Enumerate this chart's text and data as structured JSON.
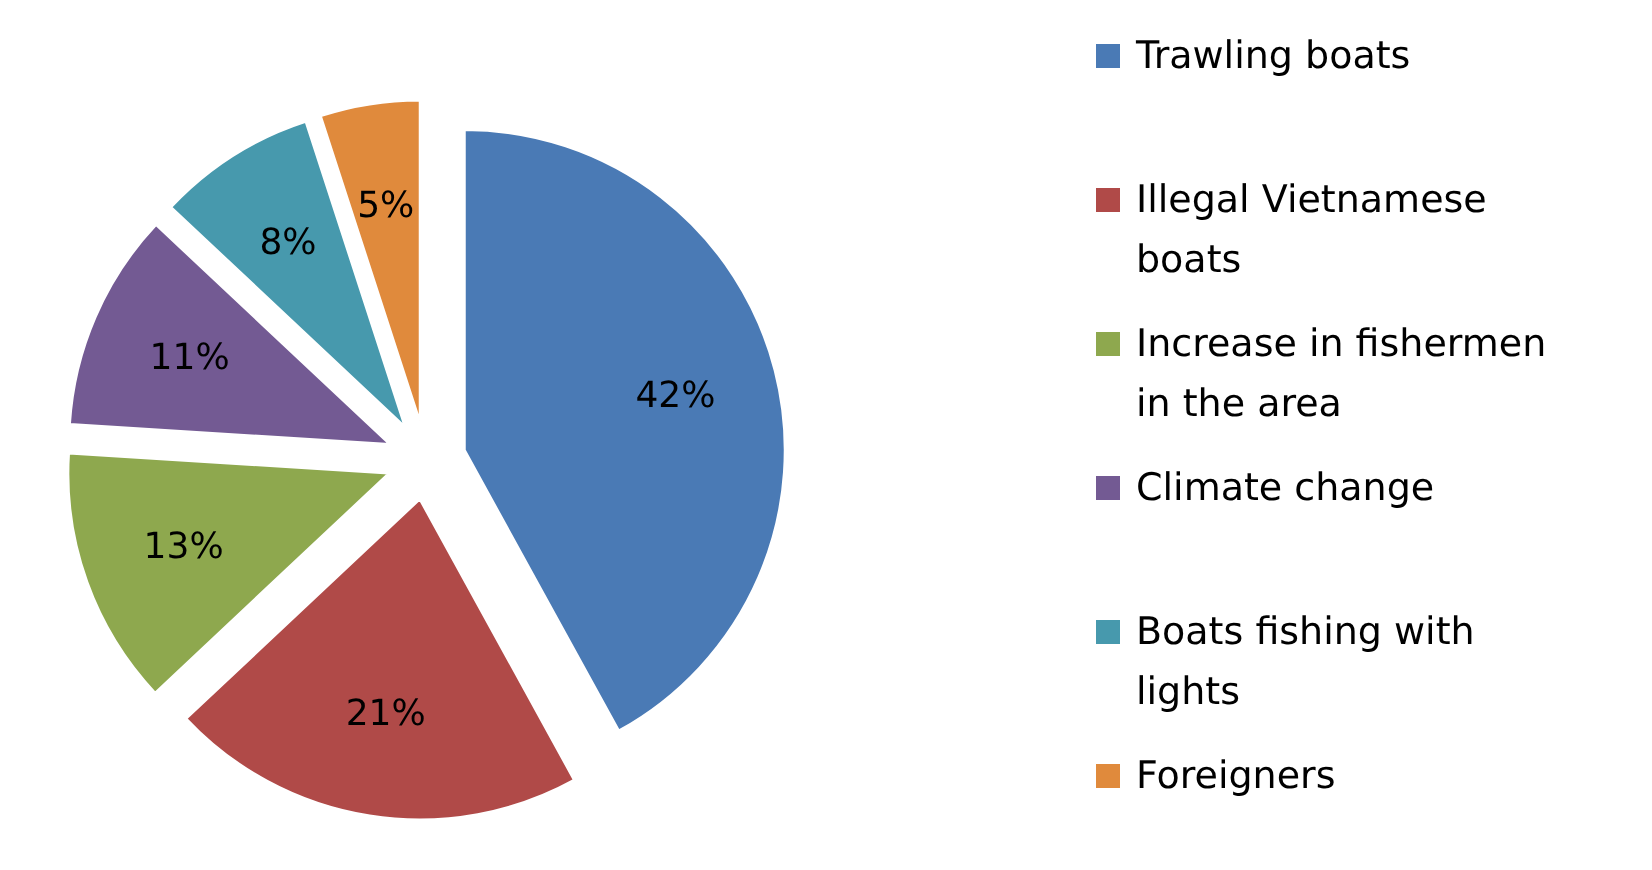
{
  "chart_data": {
    "type": "pie",
    "categories": [
      "Trawling boats",
      "Illegal Vietnamese boats",
      "Increase in fishermen in the area",
      "Climate change",
      "Boats fishing with lights",
      "Foreigners"
    ],
    "values": [
      42,
      21,
      13,
      11,
      8,
      5
    ],
    "colors": [
      "#4a7ab5",
      "#b04a48",
      "#8ea84e",
      "#735a93",
      "#4799ad",
      "#e08a3c"
    ],
    "value_labels": [
      "42%",
      "21%",
      "13%",
      "11%",
      "8%",
      "5%"
    ],
    "legend": "right"
  }
}
